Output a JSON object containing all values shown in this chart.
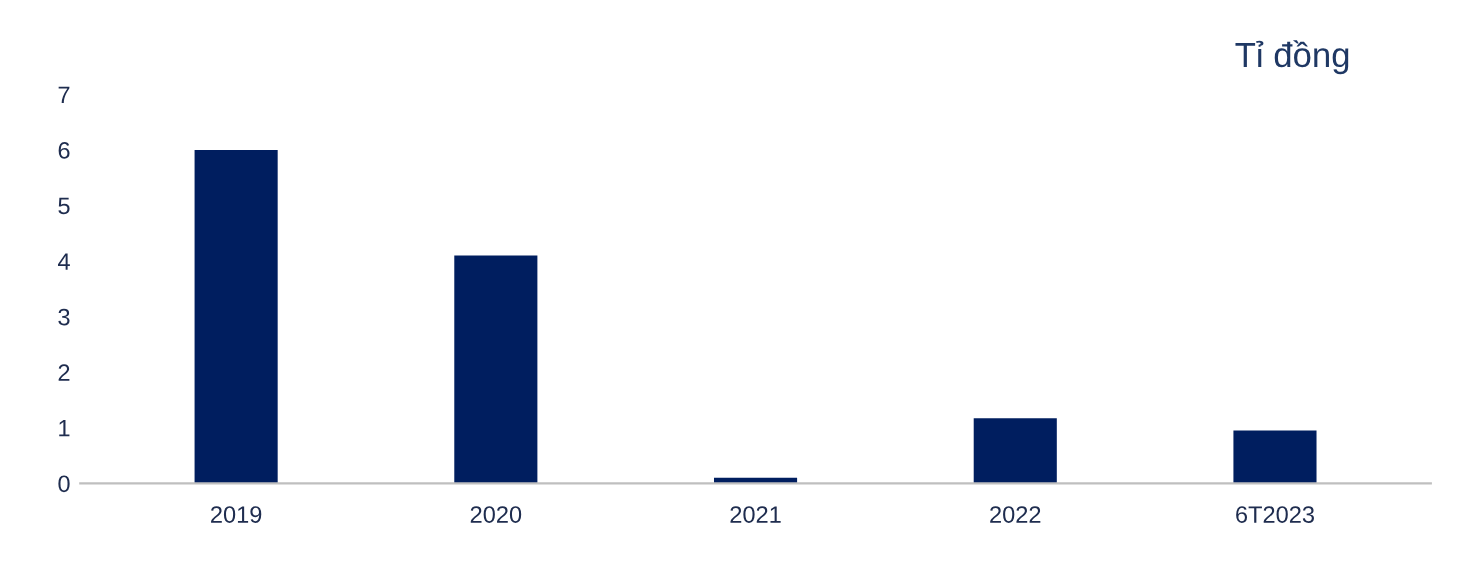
{
  "chart_data": {
    "type": "bar",
    "title": "Tỉ đồng",
    "categories": [
      "2019",
      "2020",
      "2021",
      "2022",
      "6T2023"
    ],
    "values": [
      6.0,
      4.1,
      0.1,
      1.17,
      0.95
    ],
    "color": "#001e5f",
    "ylim": [
      0,
      7
    ],
    "yticks": [
      0,
      1,
      2,
      3,
      4,
      5,
      6,
      7
    ],
    "grid": false
  }
}
